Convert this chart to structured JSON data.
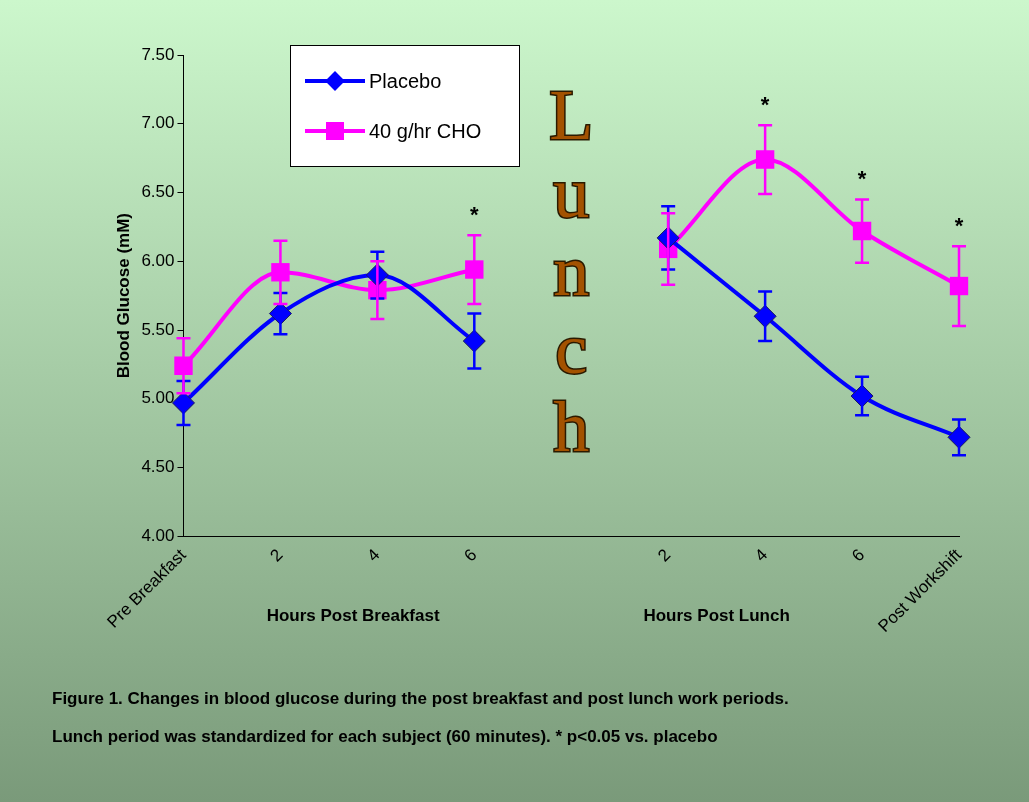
{
  "chart_data": {
    "type": "line",
    "xlabel": "Hours Post Breakfast",
    "ylabel": "Blood Glucose (mM)",
    "categories": [
      "Pre Breakfast",
      "2",
      "4",
      "6",
      null,
      "2",
      "4",
      "6",
      "Post Workshift"
    ],
    "series": [
      {
        "name": "Placebo",
        "color": "#0000ff",
        "marker": "diamond",
        "values": [
          4.97,
          5.62,
          5.9,
          5.42,
          null,
          6.17,
          5.6,
          5.02,
          4.72
        ],
        "errors": [
          0.16,
          0.15,
          0.17,
          0.2,
          null,
          0.23,
          0.18,
          0.14,
          0.13
        ]
      },
      {
        "name": "40 g/hr CHO",
        "color": "#ff00ff",
        "marker": "square",
        "values": [
          5.24,
          5.92,
          5.79,
          5.94,
          null,
          6.09,
          6.74,
          6.22,
          5.82
        ],
        "errors": [
          0.2,
          0.23,
          0.21,
          0.25,
          null,
          0.26,
          0.25,
          0.23,
          0.29
        ],
        "value_labels": [
          null,
          null,
          null,
          "*",
          null,
          null,
          "*",
          "*",
          "*"
        ]
      }
    ],
    "ylim": [
      4,
      7.5
    ],
    "yticks": [
      {
        "value": 4,
        "label": "4.00"
      },
      {
        "value": 4.5,
        "label": "4.50"
      },
      {
        "value": 5,
        "label": "5.00"
      },
      {
        "value": 5.5,
        "label": "5.50"
      },
      {
        "value": 6,
        "label": "6.00"
      },
      {
        "value": 6.5,
        "label": "6.50"
      },
      {
        "value": 7,
        "label": "7.00"
      },
      {
        "value": 7.5,
        "label": "7.50"
      }
    ],
    "grid": false,
    "legend": "top left",
    "line_style": "solid",
    "annotations": [
      "Hours Post Lunch",
      "Lunch",
      "Figure 1.  Changes in blood glucose during the post breakfast and post lunch work periods.",
      "Lunch period was standardized for each subject (60 minutes).  * p<0.05 vs. placebo"
    ]
  }
}
